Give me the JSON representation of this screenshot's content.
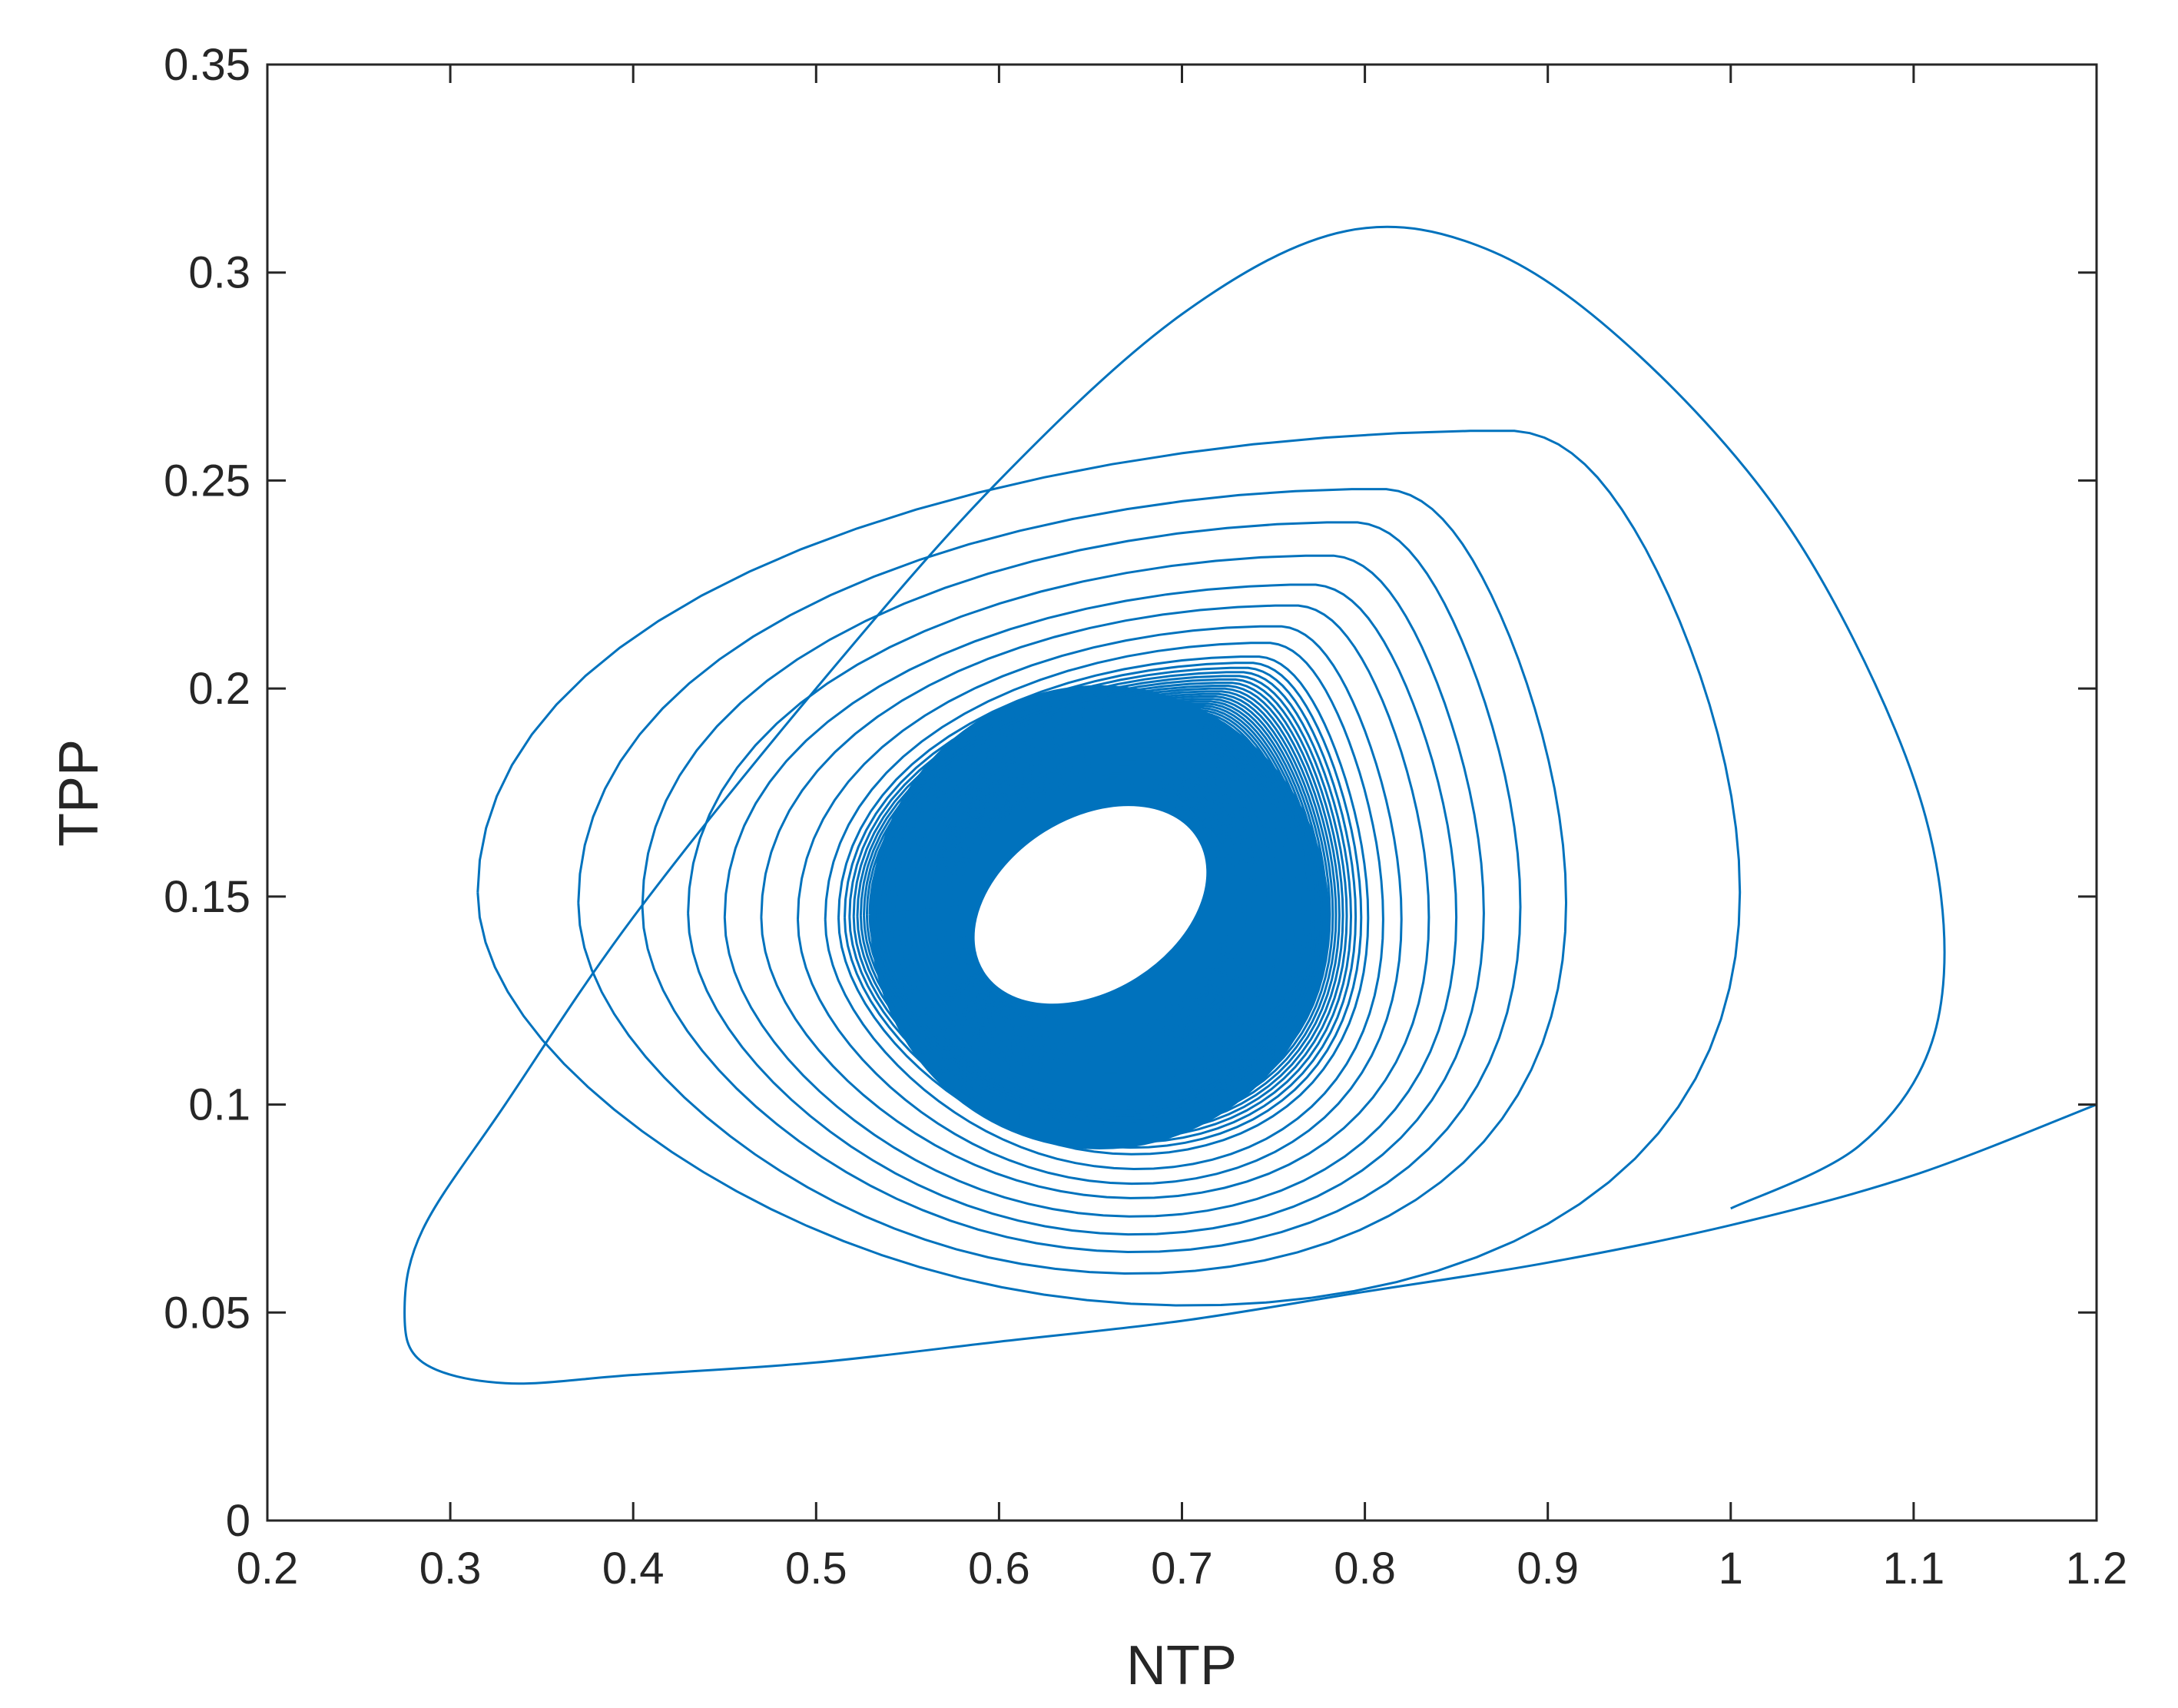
{
  "chart_data": {
    "type": "line",
    "title": "",
    "xlabel": "NTP",
    "ylabel": "TPP",
    "xlim": [
      0.2,
      1.2
    ],
    "ylim": [
      0,
      0.35
    ],
    "grid": false,
    "box": true,
    "x_ticks": [
      0.2,
      0.3,
      0.4,
      0.5,
      0.6,
      0.7,
      0.8,
      0.9,
      1.0,
      1.1,
      1.2
    ],
    "x_tick_labels": [
      "0.2",
      "0.3",
      "0.4",
      "0.5",
      "0.6",
      "0.7",
      "0.8",
      "0.9",
      "1",
      "1.1",
      "1.2"
    ],
    "y_ticks": [
      0,
      0.05,
      0.1,
      0.15,
      0.2,
      0.25,
      0.3,
      0.35
    ],
    "y_tick_labels": [
      "0",
      "0.05",
      "0.1",
      "0.15",
      "0.2",
      "0.25",
      "0.3",
      "0.35"
    ],
    "series": [
      {
        "description": "phase-plane trajectory spiralling inward to a limit cycle; first few loops shown as waypoints in data units, inner cloud and final cycle summarised",
        "color": "#0072BD",
        "start_waypoints": {
          "x": [
            1.2,
            1.1,
            1.0,
            0.9,
            0.8,
            0.7,
            0.6,
            0.5,
            0.4,
            0.33,
            0.285,
            0.275,
            0.285,
            0.33,
            0.4,
            0.5,
            0.6,
            0.7,
            0.79,
            0.87,
            0.95,
            1.03,
            1.09,
            1.115,
            1.11,
            1.07,
            1.0
          ],
          "y": [
            0.1,
            0.083,
            0.071,
            0.062,
            0.055,
            0.048,
            0.043,
            0.038,
            0.035,
            0.033,
            0.038,
            0.05,
            0.07,
            0.1,
            0.145,
            0.2,
            0.25,
            0.29,
            0.31,
            0.305,
            0.28,
            0.24,
            0.19,
            0.15,
            0.115,
            0.09,
            0.075
          ]
        },
        "loop_extremes": [
          {
            "xmin": 0.275,
            "xmax": 1.115,
            "ymin": 0.033,
            "ymax": 0.31
          },
          {
            "xmin": 0.315,
            "xmax": 1.005,
            "ymin": 0.04,
            "ymax": 0.262
          },
          {
            "xmin": 0.37,
            "xmax": 0.91,
            "ymin": 0.049,
            "ymax": 0.248
          },
          {
            "xmin": 0.405,
            "xmax": 0.885,
            "ymin": 0.055,
            "ymax": 0.24
          },
          {
            "xmin": 0.43,
            "xmax": 0.865,
            "ymin": 0.06,
            "ymax": 0.232
          },
          {
            "xmin": 0.45,
            "xmax": 0.85,
            "ymin": 0.065,
            "ymax": 0.225
          },
          {
            "xmin": 0.47,
            "xmax": 0.835,
            "ymin": 0.07,
            "ymax": 0.22
          },
          {
            "xmin": 0.49,
            "xmax": 0.82,
            "ymin": 0.074,
            "ymax": 0.215
          },
          {
            "xmin": 0.505,
            "xmax": 0.81,
            "ymin": 0.078,
            "ymax": 0.211
          }
        ],
        "dense_band": {
          "x_range": [
            0.52,
            0.79
          ],
          "y_range": [
            0.085,
            0.205
          ]
        },
        "limit_cycle": {
          "center_x": 0.65,
          "center_y": 0.148,
          "x_range": [
            0.585,
            0.72
          ],
          "y_range": [
            0.121,
            0.175
          ]
        }
      }
    ]
  }
}
